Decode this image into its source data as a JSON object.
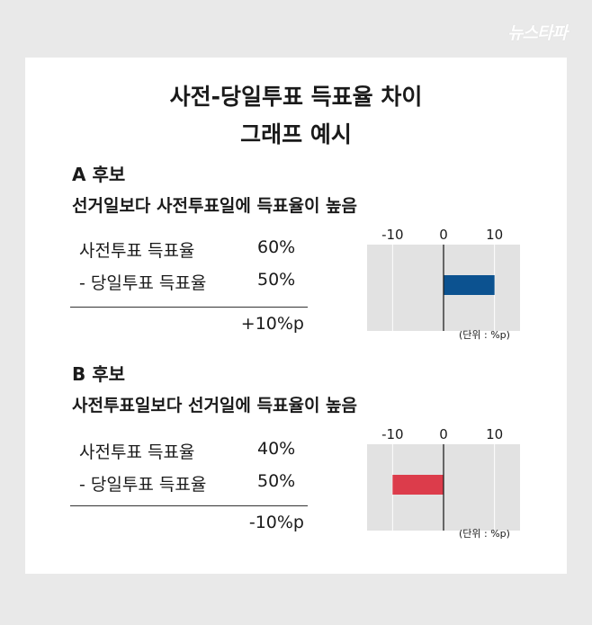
{
  "logo": "뉴스타파",
  "title_line1": "사전-당일투표 득표율 차이",
  "title_line2": "그래프 예시",
  "chart_data": [
    {
      "type": "bar",
      "orientation": "horizontal",
      "ticks": [
        -10,
        0,
        10
      ],
      "xlim": [
        -15,
        15
      ],
      "values": [
        10
      ],
      "bar_color": "#0c5290",
      "unit_note": "(단위 : %p)",
      "grid": true
    },
    {
      "type": "bar",
      "orientation": "horizontal",
      "ticks": [
        -10,
        0,
        10
      ],
      "xlim": [
        -15,
        15
      ],
      "values": [
        -10
      ],
      "bar_color": "#dc3c4b",
      "unit_note": "(단위 : %p)",
      "grid": true
    }
  ],
  "candidates": [
    {
      "label": "A 후보",
      "label_color": "#0d5ea6",
      "description": "선거일보다 사전투표일에 득표율이 높음",
      "row1_label": "사전투표 득표율",
      "row1_value": "60%",
      "row2_label": "-  당일투표 득표율",
      "row2_value": "50%",
      "result": "+10%p"
    },
    {
      "label": "B 후보",
      "label_color": "#d8334a",
      "description": "사전투표일보다 선거일에 득표율이 높음",
      "row1_label": "사전투표 득표율",
      "row1_value": "40%",
      "row2_label": "-  당일투표 득표율",
      "row2_value": "50%",
      "result": "-10%p"
    }
  ]
}
